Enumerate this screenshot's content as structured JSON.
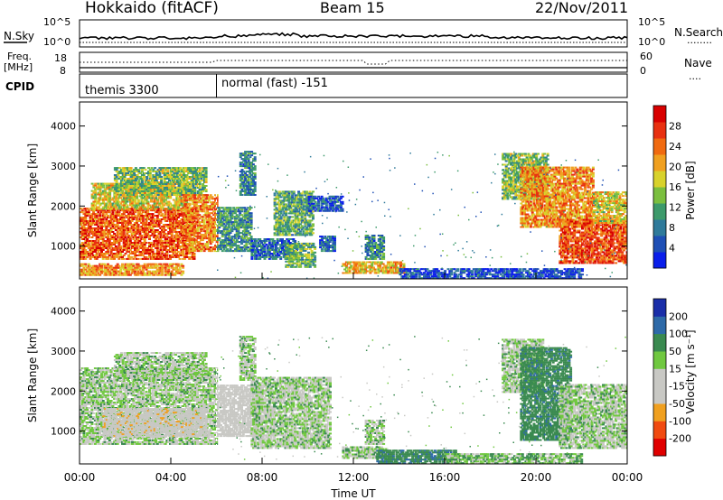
{
  "header": {
    "station": "Hokkaido (fitACF)",
    "beam": "Beam 15",
    "date": "22/Nov/2011"
  },
  "nsky_panel": {
    "left_label": "N.Sky",
    "right_label": "N.Search",
    "right_legend": "........",
    "tick_top": "10^5",
    "tick_bottom": "10^0"
  },
  "freq_panel": {
    "left_label_1": "Freq.",
    "left_label_2": "[MHz]",
    "right_label": "Nave",
    "right_legend": "....",
    "left_tick_top": "18",
    "left_tick_bottom": "8",
    "right_tick_top": "60",
    "right_tick_bottom": "0"
  },
  "cpid_panel": {
    "label": "CPID",
    "modes": [
      {
        "name": "themis 3300",
        "start_hour": 0,
        "end_hour": 6
      },
      {
        "name": "normal (fast) -151",
        "start_hour": 6,
        "end_hour": 24
      }
    ]
  },
  "chart_data": [
    {
      "type": "heatmap",
      "name": "power",
      "ylabel": "Slant Range [km]",
      "ylim": [
        180,
        4600
      ],
      "yticks": [
        "1000",
        "2000",
        "3000",
        "4000"
      ],
      "xlim": [
        0,
        24
      ],
      "colorbar": {
        "label": "Power [dB]",
        "ticks": [
          "4",
          "8",
          "12",
          "16",
          "20",
          "24",
          "28"
        ],
        "range": [
          0,
          32
        ]
      },
      "blobs": [
        {
          "x": [
            0.0,
            5.0
          ],
          "y": [
            700,
            2000
          ],
          "v": 25
        },
        {
          "x": [
            0.5,
            4.8
          ],
          "y": [
            1950,
            2600
          ],
          "v": 18
        },
        {
          "x": [
            1.5,
            5.5
          ],
          "y": [
            2300,
            3000
          ],
          "v": 14
        },
        {
          "x": [
            0.0,
            4.5
          ],
          "y": [
            300,
            600
          ],
          "v": 22
        },
        {
          "x": [
            4.5,
            6.0
          ],
          "y": [
            900,
            2300
          ],
          "v": 23
        },
        {
          "x": [
            6.0,
            7.5
          ],
          "y": [
            900,
            2000
          ],
          "v": 10
        },
        {
          "x": [
            7.0,
            7.7
          ],
          "y": [
            2300,
            3400
          ],
          "v": 9
        },
        {
          "x": [
            7.5,
            9.5
          ],
          "y": [
            700,
            1200
          ],
          "v": 7
        },
        {
          "x": [
            8.5,
            10.2
          ],
          "y": [
            1300,
            2400
          ],
          "v": 12
        },
        {
          "x": [
            9.0,
            10.3
          ],
          "y": [
            500,
            1100
          ],
          "v": 13
        },
        {
          "x": [
            10.5,
            11.2
          ],
          "y": [
            900,
            1300
          ],
          "v": 6
        },
        {
          "x": [
            10.0,
            11.5
          ],
          "y": [
            1900,
            2300
          ],
          "v": 5
        },
        {
          "x": [
            12.5,
            13.3
          ],
          "y": [
            700,
            1300
          ],
          "v": 9
        },
        {
          "x": [
            11.5,
            14.2
          ],
          "y": [
            350,
            650
          ],
          "v": 20
        },
        {
          "x": [
            14.0,
            22.0
          ],
          "y": [
            220,
            450
          ],
          "v": 4
        },
        {
          "x": [
            18.5,
            20.5
          ],
          "y": [
            2200,
            3350
          ],
          "v": 14
        },
        {
          "x": [
            19.3,
            22.5
          ],
          "y": [
            1500,
            3000
          ],
          "v": 22
        },
        {
          "x": [
            21.0,
            24.0
          ],
          "y": [
            600,
            1700
          ],
          "v": 26
        },
        {
          "x": [
            22.5,
            24.0
          ],
          "y": [
            1600,
            2400
          ],
          "v": 18
        }
      ]
    },
    {
      "type": "heatmap",
      "name": "velocity",
      "ylabel": "Slant Range [km]",
      "ylim": [
        180,
        4600
      ],
      "yticks": [
        "1000",
        "2000",
        "3000",
        "4000"
      ],
      "xlim": [
        0,
        24
      ],
      "xticks": [
        "00:00",
        "04:00",
        "08:00",
        "12:00",
        "16:00",
        "20:00",
        "00:00"
      ],
      "xlabel": "Time UT",
      "colorbar": {
        "label": "Velocity [m s⁻¹]",
        "ticks": [
          "-200",
          "-100",
          "-50",
          "-15",
          "15",
          "50",
          "100",
          "200"
        ],
        "range": [
          -250,
          250
        ]
      },
      "blobs": [
        {
          "x": [
            0.0,
            6.0
          ],
          "y": [
            700,
            2600
          ],
          "v": 0
        },
        {
          "x": [
            1.5,
            5.5
          ],
          "y": [
            2300,
            3000
          ],
          "v": 0
        },
        {
          "x": [
            1.0,
            5.5
          ],
          "y": [
            900,
            1600
          ],
          "v": -35
        },
        {
          "x": [
            6.0,
            8.0
          ],
          "y": [
            900,
            2200
          ],
          "v": -30
        },
        {
          "x": [
            7.0,
            7.7
          ],
          "y": [
            2300,
            3400
          ],
          "v": 0
        },
        {
          "x": [
            7.5,
            11.0
          ],
          "y": [
            600,
            2400
          ],
          "v": 0
        },
        {
          "x": [
            12.5,
            13.3
          ],
          "y": [
            700,
            1300
          ],
          "v": 0
        },
        {
          "x": [
            11.5,
            13.5
          ],
          "y": [
            350,
            650
          ],
          "v": 0
        },
        {
          "x": [
            13.0,
            16.5
          ],
          "y": [
            220,
            550
          ],
          "v": 40
        },
        {
          "x": [
            16.0,
            22.0
          ],
          "y": [
            220,
            450
          ],
          "v": 10
        },
        {
          "x": [
            18.5,
            20.3
          ],
          "y": [
            2000,
            3350
          ],
          "v": 0
        },
        {
          "x": [
            19.3,
            21.5
          ],
          "y": [
            800,
            3100
          ],
          "v": 35
        },
        {
          "x": [
            21.0,
            24.0
          ],
          "y": [
            600,
            2200
          ],
          "v": 0
        }
      ]
    }
  ]
}
